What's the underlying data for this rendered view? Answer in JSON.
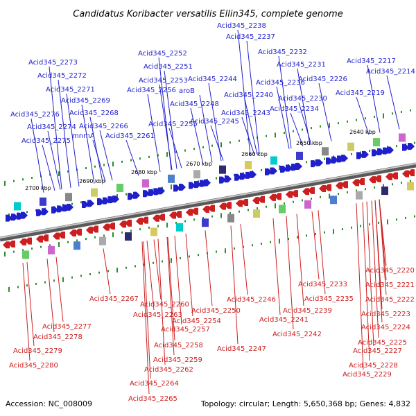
{
  "title": "Candidatus Koribacter versatilis Ellin345, complete genome",
  "footer": {
    "accession": "Accession: NC_008009",
    "summary": "Topology: circular; Length: 5,650,368 bp; Genes: 4,832"
  },
  "colors": {
    "forward": "#1f1fcc",
    "reverse": "#cc1f1f",
    "backbone": "#808080",
    "scale_tick": "#2e8b2e"
  },
  "scale_labels": [
    "2640 kbp",
    "2650 kbp",
    "2660 kbp",
    "2670 kbp",
    "2680 kbp",
    "2690 kbp",
    "2700 kbp"
  ],
  "top_labels": [
    "Acid345_2238",
    "Acid345_2237",
    "Acid345_2232",
    "Acid345_2231",
    "Acid345_2217",
    "Acid345_2214",
    "Acid345_2273",
    "Acid345_2252",
    "Acid345_2272",
    "Acid345_2251",
    "Acid345_2226",
    "Acid345_2253",
    "Acid345_2244",
    "Acid345_2236",
    "Acid345_2271",
    "Acid345_2256",
    "aroB",
    "Acid345_2240",
    "Acid345_2230",
    "Acid345_2219",
    "Acid345_2269",
    "Acid345_2248",
    "Acid345_2234",
    "Acid345_2276",
    "Acid345_2268",
    "Acid345_2243",
    "Acid345_2245",
    "Acid345_2274",
    "Acid345_2266",
    "Acid345_2255",
    "mnmA",
    "Acid345_2261",
    "Acid345_2275"
  ],
  "bottom_labels": [
    "Acid345_2220",
    "Acid345_2221",
    "Acid345_2233",
    "Acid345_2222",
    "Acid345_2235",
    "Acid345_2267",
    "Acid345_2246",
    "Acid345_2223",
    "Acid345_2260",
    "Acid345_2239",
    "Acid345_2263",
    "Acid345_2250",
    "Acid345_2241",
    "Acid345_2254",
    "Acid345_2224",
    "Acid345_2277",
    "Acid345_2257",
    "Acid345_2242",
    "Acid345_2278",
    "Acid345_2225",
    "Acid345_2258",
    "Acid345_2247",
    "Acid345_2227",
    "Acid345_2279",
    "Acid345_2259",
    "Acid345_2228",
    "Acid345_2280",
    "Acid345_2262",
    "Acid345_2229",
    "Acid345_2264",
    "Acid345_2265"
  ]
}
